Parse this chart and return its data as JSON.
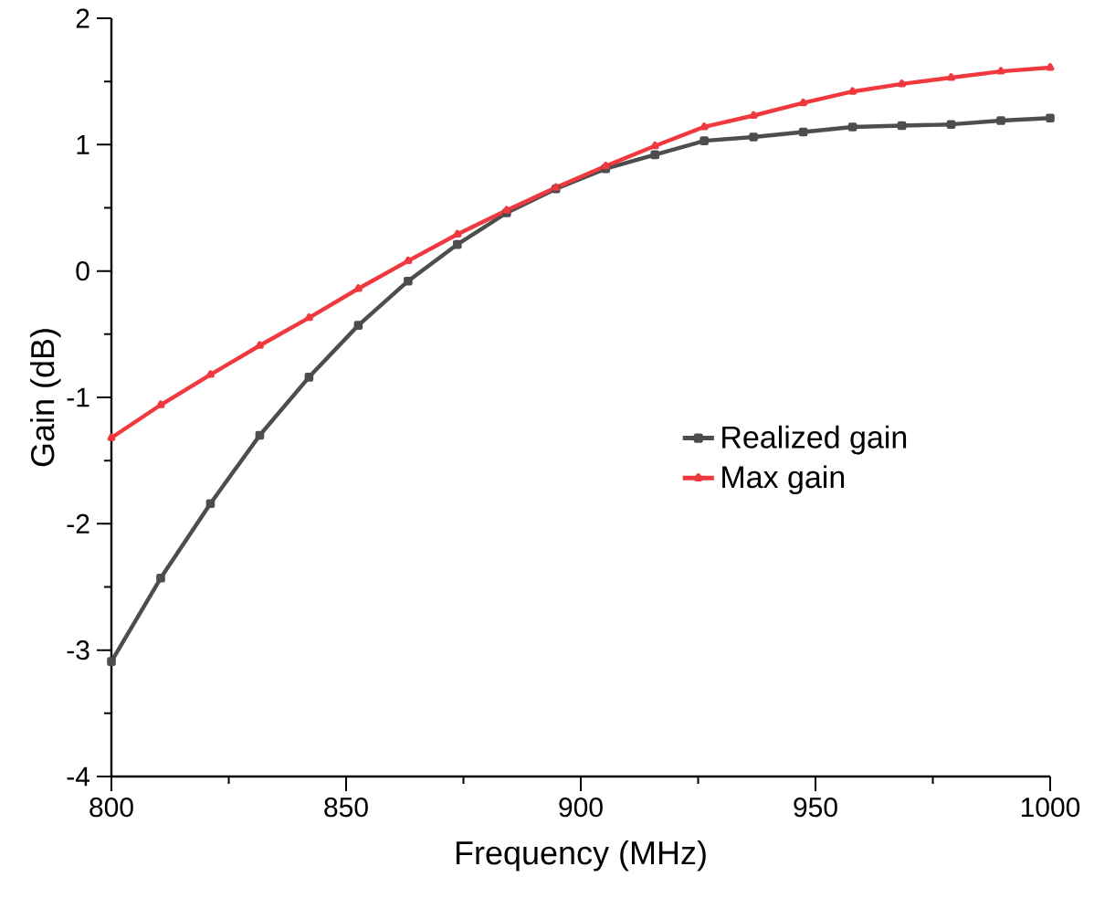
{
  "chart_data": {
    "type": "line",
    "xlabel": "Frequency (MHz)",
    "ylabel": "Gain (dB)",
    "x": [
      800,
      810.5,
      821.1,
      831.6,
      842.1,
      852.6,
      863.2,
      873.7,
      884.2,
      894.7,
      905.3,
      915.8,
      926.3,
      936.8,
      947.4,
      957.9,
      968.4,
      978.9,
      989.5,
      1000
    ],
    "series": [
      {
        "name": "Realized gain",
        "color": "#4d4d4d",
        "marker": "square",
        "values": [
          -3.09,
          -2.43,
          -1.84,
          -1.3,
          -0.84,
          -0.43,
          -0.08,
          0.21,
          0.46,
          0.65,
          0.81,
          0.92,
          1.03,
          1.06,
          1.1,
          1.14,
          1.15,
          1.16,
          1.19,
          1.21
        ]
      },
      {
        "name": "Max gain",
        "color": "#f0393e",
        "marker": "triangle",
        "values": [
          -1.32,
          -1.06,
          -0.82,
          -0.59,
          -0.37,
          -0.14,
          0.08,
          0.29,
          0.48,
          0.66,
          0.83,
          0.99,
          1.14,
          1.23,
          1.33,
          1.42,
          1.48,
          1.53,
          1.58,
          1.61
        ]
      }
    ],
    "xlim": [
      800,
      1000
    ],
    "xticks": [
      800,
      850,
      900,
      950,
      1000
    ],
    "ylim": [
      -4,
      2
    ],
    "yticks": [
      -4,
      -3,
      -2,
      -1,
      0,
      1,
      2
    ],
    "grid": false,
    "legend": "right",
    "line_style": "solid"
  }
}
